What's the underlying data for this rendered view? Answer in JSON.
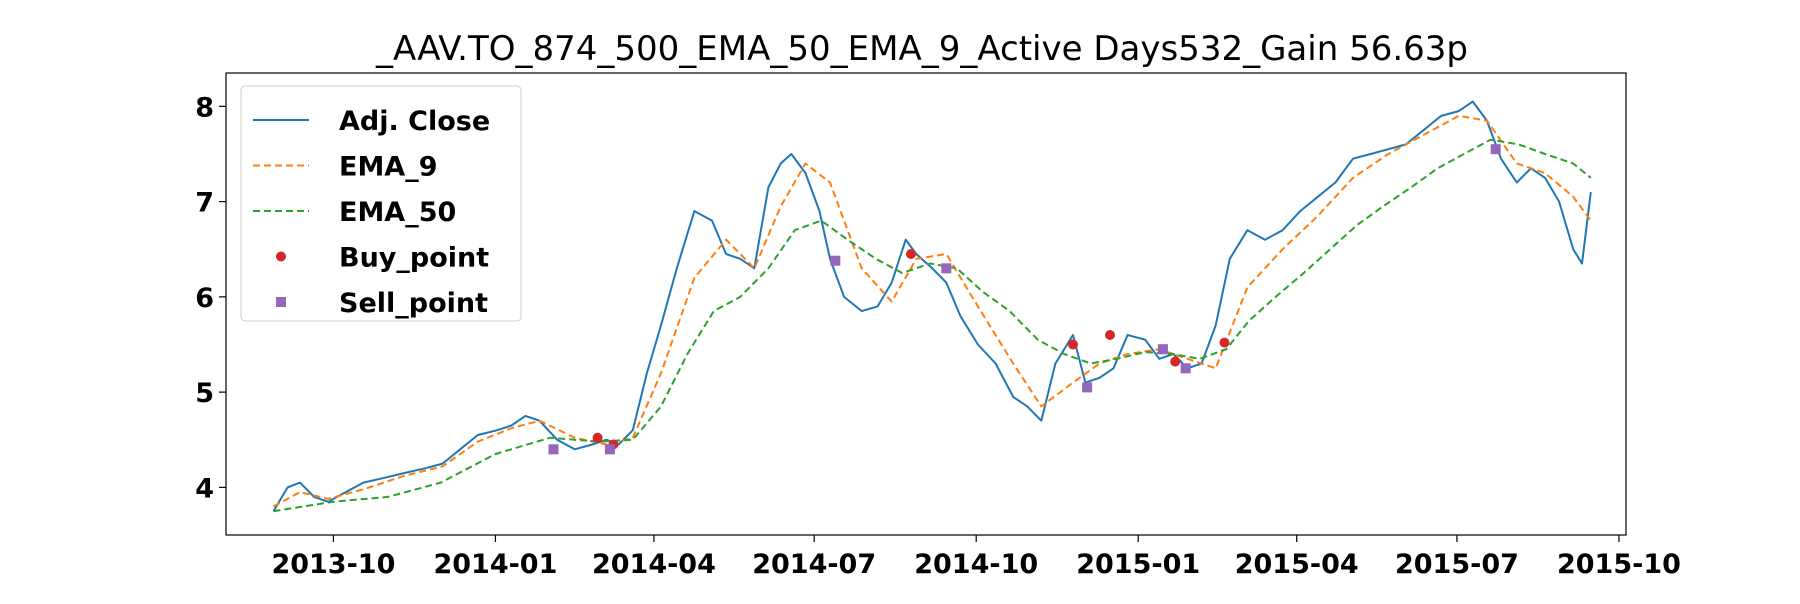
{
  "chart_data": {
    "type": "line",
    "title": "_AAV.TO_874_500_EMA_50_EMA_9_Active Days532_Gain  56.63p",
    "xlabel": "",
    "ylabel": "",
    "x_range": [
      "2013-08-01",
      "2015-10-05"
    ],
    "ylim": [
      3.5,
      8.35
    ],
    "grid": false,
    "legend_placement": "top-left",
    "x_ticks": [
      {
        "date": "2013-10-01",
        "label": "2013-10"
      },
      {
        "date": "2014-01-01",
        "label": "2014-01"
      },
      {
        "date": "2014-04-01",
        "label": "2014-04"
      },
      {
        "date": "2014-07-01",
        "label": "2014-07"
      },
      {
        "date": "2014-10-01",
        "label": "2014-10"
      },
      {
        "date": "2015-01-01",
        "label": "2015-01"
      },
      {
        "date": "2015-04-01",
        "label": "2015-04"
      },
      {
        "date": "2015-07-01",
        "label": "2015-07"
      },
      {
        "date": "2015-10-01",
        "label": "2015-10"
      }
    ],
    "y_ticks": [
      {
        "value": 4,
        "label": "4"
      },
      {
        "value": 5,
        "label": "5"
      },
      {
        "value": 6,
        "label": "6"
      },
      {
        "value": 7,
        "label": "7"
      },
      {
        "value": 8,
        "label": "8"
      }
    ],
    "series": [
      {
        "name": "Adj. Close",
        "style": "solid",
        "color": "#1f77b4",
        "x": [
          "2013-08-28",
          "2013-09-05",
          "2013-09-12",
          "2013-09-20",
          "2013-09-28",
          "2013-10-08",
          "2013-10-18",
          "2013-10-30",
          "2013-11-10",
          "2013-11-22",
          "2013-12-02",
          "2013-12-12",
          "2013-12-22",
          "2014-01-02",
          "2014-01-10",
          "2014-01-18",
          "2014-01-26",
          "2014-02-05",
          "2014-02-15",
          "2014-02-25",
          "2014-03-05",
          "2014-03-12",
          "2014-03-20",
          "2014-03-28",
          "2014-04-05",
          "2014-04-14",
          "2014-04-24",
          "2014-05-04",
          "2014-05-12",
          "2014-05-20",
          "2014-05-28",
          "2014-06-05",
          "2014-06-12",
          "2014-06-18",
          "2014-06-26",
          "2014-07-04",
          "2014-07-10",
          "2014-07-18",
          "2014-07-28",
          "2014-08-06",
          "2014-08-14",
          "2014-08-22",
          "2014-08-28",
          "2014-09-06",
          "2014-09-14",
          "2014-09-22",
          "2014-10-02",
          "2014-10-12",
          "2014-10-22",
          "2014-10-30",
          "2014-11-07",
          "2014-11-15",
          "2014-11-25",
          "2014-12-02",
          "2014-12-10",
          "2014-12-18",
          "2014-12-26",
          "2015-01-05",
          "2015-01-13",
          "2015-01-21",
          "2015-01-29",
          "2015-02-06",
          "2015-02-14",
          "2015-02-22",
          "2015-03-04",
          "2015-03-14",
          "2015-03-24",
          "2015-04-03",
          "2015-04-13",
          "2015-04-23",
          "2015-05-03",
          "2015-05-13",
          "2015-05-23",
          "2015-06-02",
          "2015-06-12",
          "2015-06-22",
          "2015-07-02",
          "2015-07-10",
          "2015-07-18",
          "2015-07-26",
          "2015-08-04",
          "2015-08-12",
          "2015-08-20",
          "2015-08-28",
          "2015-09-05",
          "2015-09-10",
          "2015-09-15"
        ],
        "values": [
          3.75,
          4.0,
          4.05,
          3.9,
          3.85,
          3.95,
          4.05,
          4.1,
          4.15,
          4.2,
          4.25,
          4.4,
          4.55,
          4.6,
          4.65,
          4.75,
          4.7,
          4.5,
          4.4,
          4.45,
          4.5,
          4.45,
          4.6,
          5.2,
          5.7,
          6.3,
          6.9,
          6.8,
          6.45,
          6.4,
          6.3,
          7.15,
          7.4,
          7.5,
          7.3,
          6.9,
          6.4,
          6.0,
          5.85,
          5.9,
          6.15,
          6.6,
          6.45,
          6.3,
          6.15,
          5.8,
          5.5,
          5.3,
          4.95,
          4.85,
          4.7,
          5.3,
          5.6,
          5.1,
          5.15,
          5.25,
          5.6,
          5.55,
          5.35,
          5.4,
          5.25,
          5.3,
          5.7,
          6.4,
          6.7,
          6.6,
          6.7,
          6.9,
          7.05,
          7.2,
          7.45,
          7.5,
          7.55,
          7.6,
          7.75,
          7.9,
          7.95,
          8.05,
          7.85,
          7.45,
          7.2,
          7.35,
          7.25,
          7.0,
          6.5,
          6.35,
          7.1
        ]
      },
      {
        "name": "EMA_9",
        "style": "dashed",
        "color": "#ff7f0e",
        "x": [
          "2013-08-28",
          "2013-09-12",
          "2013-09-28",
          "2013-10-18",
          "2013-11-10",
          "2013-12-02",
          "2013-12-22",
          "2014-01-10",
          "2014-01-26",
          "2014-02-15",
          "2014-03-05",
          "2014-03-20",
          "2014-04-05",
          "2014-04-24",
          "2014-05-12",
          "2014-05-28",
          "2014-06-12",
          "2014-06-26",
          "2014-07-10",
          "2014-07-28",
          "2014-08-14",
          "2014-08-28",
          "2014-09-14",
          "2014-10-02",
          "2014-10-22",
          "2014-11-07",
          "2014-11-25",
          "2014-12-10",
          "2014-12-26",
          "2015-01-13",
          "2015-01-29",
          "2015-02-14",
          "2015-03-04",
          "2015-03-24",
          "2015-04-13",
          "2015-05-03",
          "2015-05-23",
          "2015-06-12",
          "2015-07-02",
          "2015-07-18",
          "2015-08-04",
          "2015-08-20",
          "2015-09-05",
          "2015-09-15"
        ],
        "values": [
          3.8,
          3.95,
          3.88,
          3.98,
          4.12,
          4.22,
          4.48,
          4.62,
          4.7,
          4.52,
          4.45,
          4.52,
          5.2,
          6.2,
          6.6,
          6.3,
          6.95,
          7.4,
          7.2,
          6.3,
          5.95,
          6.4,
          6.45,
          5.9,
          5.3,
          4.85,
          5.1,
          5.3,
          5.4,
          5.45,
          5.35,
          5.25,
          6.1,
          6.5,
          6.85,
          7.25,
          7.5,
          7.7,
          7.9,
          7.85,
          7.4,
          7.3,
          7.05,
          6.8
        ]
      },
      {
        "name": "EMA_50",
        "style": "dashed",
        "color": "#2ca02c",
        "x": [
          "2013-08-28",
          "2013-10-01",
          "2013-11-01",
          "2013-12-01",
          "2014-01-01",
          "2014-02-01",
          "2014-03-01",
          "2014-03-20",
          "2014-04-05",
          "2014-04-20",
          "2014-05-05",
          "2014-05-20",
          "2014-06-05",
          "2014-06-20",
          "2014-07-05",
          "2014-07-20",
          "2014-08-05",
          "2014-08-20",
          "2014-09-05",
          "2014-09-20",
          "2014-10-05",
          "2014-10-20",
          "2014-11-05",
          "2014-11-20",
          "2014-12-05",
          "2014-12-20",
          "2015-01-05",
          "2015-01-20",
          "2015-02-05",
          "2015-02-20",
          "2015-03-05",
          "2015-03-20",
          "2015-04-05",
          "2015-04-20",
          "2015-05-05",
          "2015-05-20",
          "2015-06-05",
          "2015-06-20",
          "2015-07-05",
          "2015-07-20",
          "2015-08-05",
          "2015-08-20",
          "2015-09-05",
          "2015-09-15"
        ],
        "values": [
          3.75,
          3.85,
          3.9,
          4.05,
          4.35,
          4.52,
          4.48,
          4.5,
          4.85,
          5.4,
          5.85,
          6.0,
          6.3,
          6.7,
          6.8,
          6.6,
          6.4,
          6.25,
          6.35,
          6.3,
          6.05,
          5.85,
          5.55,
          5.4,
          5.3,
          5.35,
          5.42,
          5.4,
          5.35,
          5.45,
          5.75,
          6.0,
          6.25,
          6.5,
          6.75,
          6.95,
          7.15,
          7.35,
          7.5,
          7.65,
          7.6,
          7.5,
          7.4,
          7.25
        ]
      }
    ],
    "buy_points": {
      "name": "Buy_point",
      "color": "#d62728",
      "marker": "circle",
      "x": [
        "2014-02-28",
        "2014-03-09",
        "2014-08-25",
        "2014-11-25",
        "2014-12-16",
        "2015-01-22",
        "2015-02-19"
      ],
      "values": [
        4.52,
        4.45,
        6.45,
        5.5,
        5.6,
        5.32,
        5.52
      ]
    },
    "sell_points": {
      "name": "Sell_point",
      "color": "#9467bd",
      "marker": "square",
      "x": [
        "2014-02-03",
        "2014-03-07",
        "2014-07-13",
        "2014-09-14",
        "2014-12-03",
        "2015-01-15",
        "2015-01-28",
        "2015-07-23"
      ],
      "values": [
        4.4,
        4.4,
        6.38,
        6.3,
        5.05,
        5.45,
        5.25,
        7.55
      ]
    }
  }
}
